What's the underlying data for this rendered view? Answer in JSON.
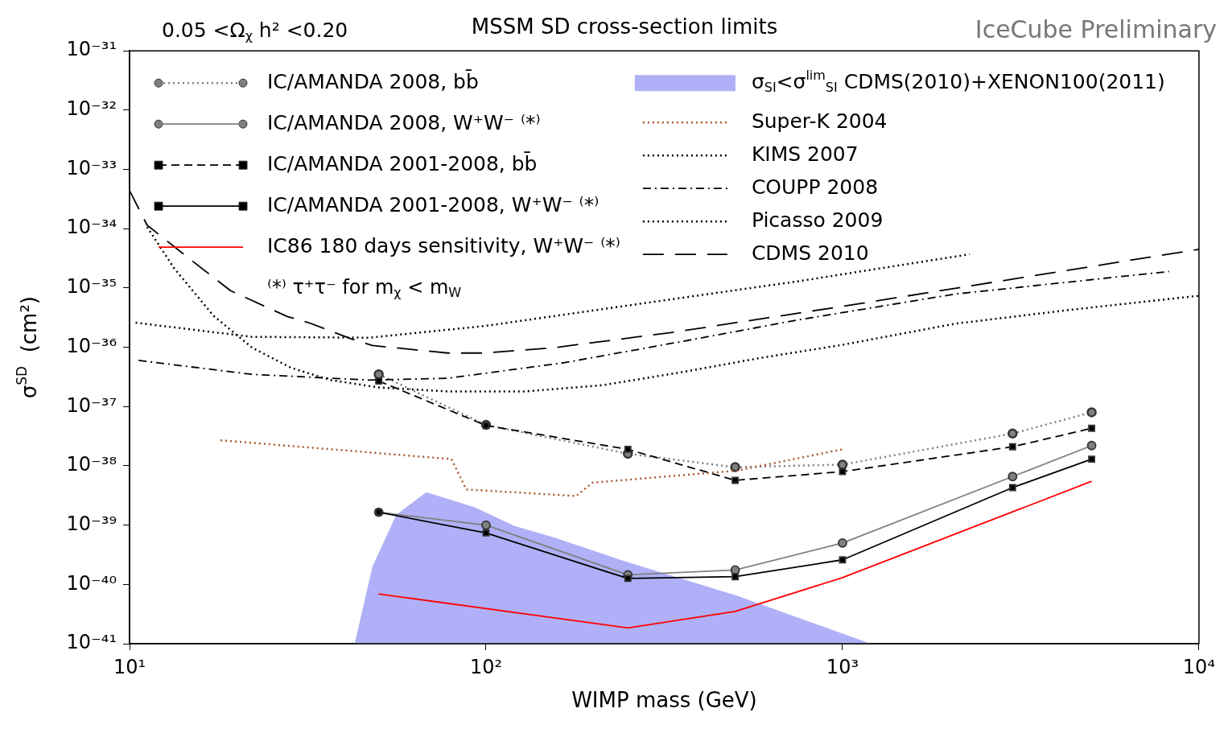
{
  "chart_data": {
    "type": "line",
    "title": "MSSM SD cross-section limits",
    "xlabel": "WIMP mass (GeV)",
    "ylabel": "σ$^{SD}$  (cm²)",
    "log": "xy",
    "grid": false,
    "legend": "top",
    "xlim": [
      10,
      10000
    ],
    "xticks": [
      {
        "value": 10,
        "label": "10¹"
      },
      {
        "value": 100,
        "label": "10²"
      },
      {
        "value": 1000,
        "label": "10³"
      },
      {
        "value": 10000,
        "label": "10⁴"
      }
    ],
    "ylim": [
      1e-41,
      1e-31
    ],
    "yticks": [
      {
        "value": 1e-41,
        "label": "10⁻⁴¹"
      },
      {
        "value": 1e-40,
        "label": "10⁻⁴⁰"
      },
      {
        "value": 1e-39,
        "label": "10⁻³⁹"
      },
      {
        "value": 1e-38,
        "label": "10⁻³⁸"
      },
      {
        "value": 1e-37,
        "label": "10⁻³⁷"
      },
      {
        "value": 1e-36,
        "label": "10⁻³⁶"
      },
      {
        "value": 1e-35,
        "label": "10⁻³⁵"
      },
      {
        "value": 1e-34,
        "label": "10⁻³⁴"
      },
      {
        "value": 1e-33,
        "label": "10⁻³³"
      },
      {
        "value": 1e-32,
        "label": "10⁻³²"
      },
      {
        "value": 1e-31,
        "label": "10⁻³¹"
      }
    ],
    "annotations": [
      "0.05 <Ω$_{χ}$ h² <0.20",
      "⁽*⁾ τ⁺τ⁻ for m$_{χ}$ < m$_{W}$",
      "IceCube Preliminary"
    ],
    "series": [
      {
        "name": "IC/AMANDA 2008, bb̄",
        "color": "#808080",
        "marker": "circle",
        "line_style": "dotted",
        "x": [
          50,
          100,
          250,
          500,
          1000,
          3000,
          5000
        ],
        "values": [
          3.5e-37,
          4.9e-38,
          1.6e-38,
          9.5e-39,
          1.05e-38,
          3.5e-38,
          8e-38
        ]
      },
      {
        "name": "IC/AMANDA 2008, W⁺W⁻ ⁽*⁾",
        "color": "#808080",
        "marker": "circle",
        "line_style": "solid",
        "x": [
          50,
          100,
          250,
          500,
          1000,
          3000,
          5000
        ],
        "values": [
          1.65e-39,
          1e-39,
          1.45e-40,
          1.75e-40,
          5e-40,
          6.6e-39,
          2.2e-38
        ]
      },
      {
        "name": "IC/AMANDA 2001-2008, bb̄",
        "color": "#000000",
        "marker": "square",
        "line_style": "dashed",
        "x": [
          50,
          100,
          250,
          500,
          1000,
          3000,
          5000
        ],
        "values": [
          2.7e-37,
          4.8e-38,
          1.9e-38,
          5.7e-39,
          8e-39,
          2.1e-38,
          4.3e-38
        ]
      },
      {
        "name": "IC/AMANDA 2001-2008, W⁺W⁻ ⁽*⁾",
        "color": "#000000",
        "marker": "square",
        "line_style": "solid",
        "x": [
          50,
          100,
          250,
          500,
          1000,
          3000,
          5000
        ],
        "values": [
          1.65e-39,
          7.4e-40,
          1.26e-40,
          1.35e-40,
          2.6e-40,
          4.3e-39,
          1.3e-38
        ]
      },
      {
        "name": "IC86 180 days sensitivity, W⁺W⁻ ⁽*⁾",
        "color": "#ff0000",
        "line_style": "solid",
        "x": [
          50,
          250,
          500,
          1000,
          5000
        ],
        "values": [
          6.9e-41,
          1.85e-41,
          3.5e-41,
          1.3e-40,
          5.5e-39
        ]
      },
      {
        "name": "σ$_{SI}$<σ$^{lim}$$_{SI}$ CDMS(2010)+XENON100(2011)",
        "type": "area",
        "color": "#b0b0f8",
        "x": [
          42.8,
          48,
          56,
          68,
          93,
          120,
          154,
          248,
          507,
          1200
        ],
        "values": [
          1e-41,
          2e-40,
          1.5e-39,
          3.6e-39,
          2e-39,
          9.7e-40,
          6.3e-40,
          2.4e-40,
          6.4e-41,
          1e-41
        ]
      },
      {
        "name": "Super-K 2004",
        "color": "#a85a2a",
        "line_style": "dotted",
        "x": [
          18,
          80,
          88,
          179,
          199,
          505,
          1000
        ],
        "values": [
          2.7e-38,
          1.3e-38,
          4e-39,
          3.1e-39,
          5.2e-39,
          8.3e-39,
          1.9e-38
        ]
      },
      {
        "name": "KIMS 2007",
        "color": "#000000",
        "line_style": "dotted",
        "x": [
          11.2,
          13.3,
          17.2,
          22.1,
          28.4,
          36.6,
          50,
          78,
          129,
          213,
          354,
          588,
          1000,
          2070,
          4380,
          10000
        ],
        "values": [
          1.07e-34,
          2.2e-35,
          3.4e-36,
          9.8e-37,
          4.5e-37,
          2.8e-37,
          2.1e-37,
          1.8e-37,
          1.8e-37,
          2.3e-37,
          3.8e-37,
          6.6e-37,
          1.1e-36,
          2.5e-36,
          4.3e-36,
          7.4e-36
        ]
      },
      {
        "name": "COUPP 2008",
        "color": "#000000",
        "line_style": "dashdot",
        "x": [
          10.6,
          22,
          47,
          78,
          166,
          354,
          752,
          2070,
          8250
        ],
        "values": [
          6e-37,
          3.5e-37,
          2.8e-37,
          3e-37,
          5.5e-37,
          1.25e-36,
          2.9e-36,
          7.9e-36,
          1.9e-35
        ]
      },
      {
        "name": "Picasso 2009",
        "color": "#000000",
        "line_style": "dotted",
        "x": [
          10.4,
          22,
          47,
          100,
          275,
          752,
          2270
        ],
        "values": [
          2.6e-36,
          1.5e-36,
          1.45e-36,
          2.3e-36,
          5.5e-36,
          1.3e-35,
          3.7e-35
        ]
      },
      {
        "name": "CDMS 2010",
        "color": "#000000",
        "line_style": "longdash",
        "x": [
          10,
          11.2,
          14.2,
          19.2,
          27.7,
          31.8,
          41.7,
          48,
          78,
          98,
          154,
          337,
          1000,
          10000
        ],
        "values": [
          4.4e-34,
          1.15e-34,
          3.7e-35,
          9e-36,
          3.3e-36,
          2.6e-36,
          1.4e-36,
          1.07e-36,
          8e-37,
          8e-37,
          9.8e-37,
          1.8e-36,
          4.9e-36,
          4.5e-35
        ]
      }
    ]
  }
}
